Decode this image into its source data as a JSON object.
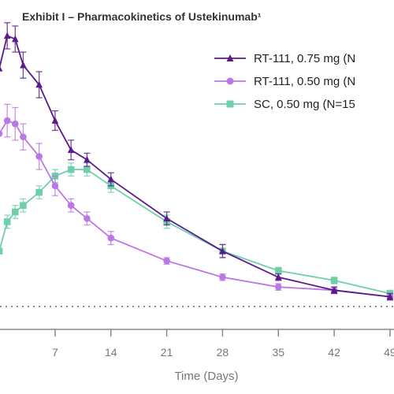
{
  "chart_data": {
    "type": "line",
    "title": "Exhibit I – Pharmacokinetics of Ustekinumab¹",
    "xlabel": "Time (Days)",
    "ylabel": "",
    "xlim": [
      -0.5,
      49.5
    ],
    "ylim": [
      0,
      1.0
    ],
    "x_ticks": [
      7,
      14,
      21,
      28,
      35,
      42,
      49
    ],
    "x_tick_labels": [
      "7",
      "14",
      "21",
      "28",
      "35",
      "42",
      "49"
    ],
    "legend_position": "top-right",
    "dashed_baseline_y": 0.07,
    "series": [
      {
        "name": "RT-111, 0.75 mg (N",
        "color": "#5b1a8c",
        "marker": "triangle",
        "points": [
          {
            "x": 0,
            "y": 0.8,
            "err": 0.0
          },
          {
            "x": 1,
            "y": 0.9,
            "err": 0.04
          },
          {
            "x": 2,
            "y": 0.89,
            "err": 0.04
          },
          {
            "x": 3,
            "y": 0.81,
            "err": 0.04
          },
          {
            "x": 5,
            "y": 0.75,
            "err": 0.04
          },
          {
            "x": 7,
            "y": 0.64,
            "err": 0.03
          },
          {
            "x": 9,
            "y": 0.55,
            "err": 0.03
          },
          {
            "x": 11,
            "y": 0.52,
            "err": 0.02
          },
          {
            "x": 14,
            "y": 0.46,
            "err": 0.02
          },
          {
            "x": 21,
            "y": 0.34,
            "err": 0.02
          },
          {
            "x": 28,
            "y": 0.24,
            "err": 0.02
          },
          {
            "x": 35,
            "y": 0.16,
            "err": 0.01
          },
          {
            "x": 42,
            "y": 0.12,
            "err": 0.01
          },
          {
            "x": 49,
            "y": 0.1,
            "err": 0.01
          }
        ]
      },
      {
        "name": "RT-111, 0.50 mg (N",
        "color": "#bb77e8",
        "marker": "circle",
        "points": [
          {
            "x": 0,
            "y": 0.6,
            "err": 0.0
          },
          {
            "x": 1,
            "y": 0.64,
            "err": 0.05
          },
          {
            "x": 2,
            "y": 0.63,
            "err": 0.05
          },
          {
            "x": 3,
            "y": 0.59,
            "err": 0.04
          },
          {
            "x": 5,
            "y": 0.53,
            "err": 0.04
          },
          {
            "x": 7,
            "y": 0.44,
            "err": 0.03
          },
          {
            "x": 9,
            "y": 0.38,
            "err": 0.02
          },
          {
            "x": 11,
            "y": 0.34,
            "err": 0.02
          },
          {
            "x": 14,
            "y": 0.28,
            "err": 0.02
          },
          {
            "x": 21,
            "y": 0.21,
            "err": 0.01
          },
          {
            "x": 28,
            "y": 0.16,
            "err": 0.01
          },
          {
            "x": 35,
            "y": 0.13,
            "err": 0.01
          },
          {
            "x": 42,
            "y": 0.12,
            "err": 0.01
          },
          {
            "x": 49,
            "y": 0.1,
            "err": 0.01
          }
        ]
      },
      {
        "name": "SC, 0.50 mg (N=15",
        "color": "#6fcfab",
        "marker": "square",
        "points": [
          {
            "x": 0,
            "y": 0.24,
            "err": 0.0
          },
          {
            "x": 1,
            "y": 0.33,
            "err": 0.02
          },
          {
            "x": 2,
            "y": 0.36,
            "err": 0.02
          },
          {
            "x": 3,
            "y": 0.38,
            "err": 0.02
          },
          {
            "x": 5,
            "y": 0.42,
            "err": 0.02
          },
          {
            "x": 7,
            "y": 0.47,
            "err": 0.02
          },
          {
            "x": 9,
            "y": 0.49,
            "err": 0.02
          },
          {
            "x": 11,
            "y": 0.49,
            "err": 0.02
          },
          {
            "x": 14,
            "y": 0.44,
            "err": 0.02
          },
          {
            "x": 21,
            "y": 0.33,
            "err": 0.02
          },
          {
            "x": 28,
            "y": 0.24,
            "err": 0.02
          },
          {
            "x": 35,
            "y": 0.18,
            "err": 0.01
          },
          {
            "x": 42,
            "y": 0.15,
            "err": 0.01
          },
          {
            "x": 49,
            "y": 0.11,
            "err": 0.01
          }
        ]
      }
    ]
  }
}
